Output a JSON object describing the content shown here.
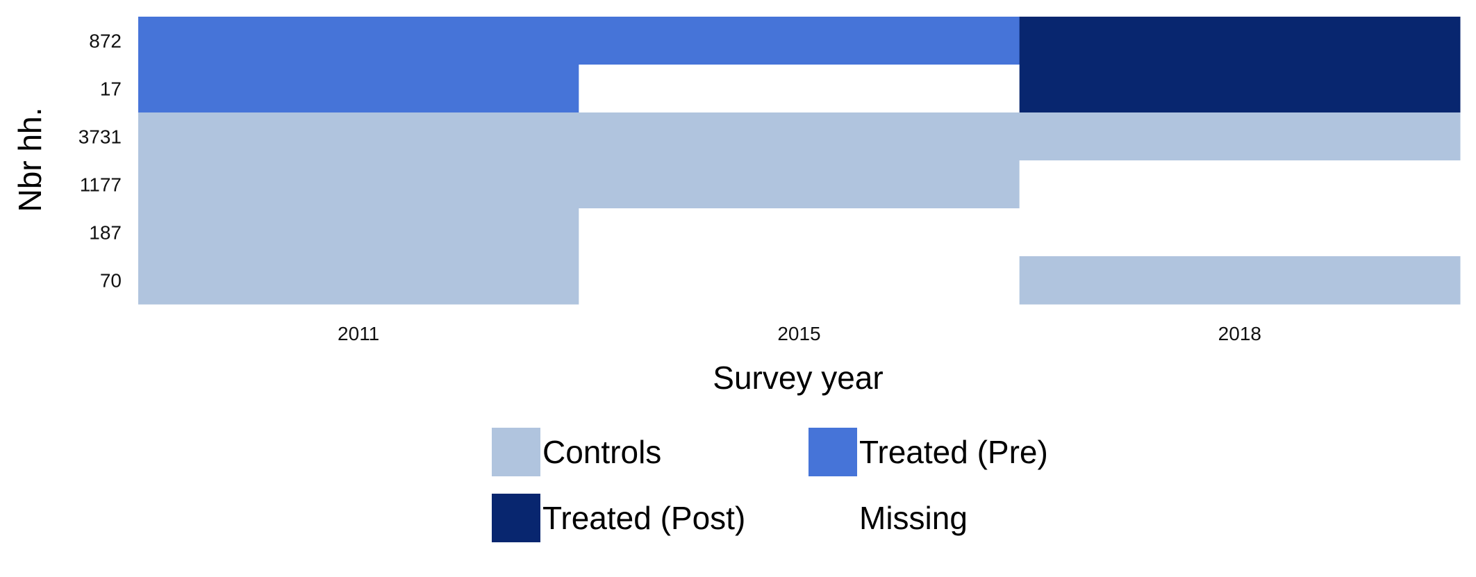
{
  "chart_data": {
    "type": "heatmap",
    "title": "",
    "xlabel": "Survey year",
    "ylabel": "Nbr hh.",
    "x": [
      "2011",
      "2015",
      "2018"
    ],
    "y": [
      "872",
      "17",
      "3731",
      "1177",
      "187",
      "70"
    ],
    "categories": [
      {
        "key": "controls",
        "label": "Controls",
        "color": "#b0c4de"
      },
      {
        "key": "pre",
        "label": "Treated (Pre)",
        "color": "#4674d8"
      },
      {
        "key": "post",
        "label": "Treated (Post)",
        "color": "#08266f"
      },
      {
        "key": "missing",
        "label": "Missing",
        "color": "#ffffff"
      }
    ],
    "cells": [
      [
        "pre",
        "pre",
        "post"
      ],
      [
        "pre",
        "missing",
        "post"
      ],
      [
        "controls",
        "controls",
        "controls"
      ],
      [
        "controls",
        "controls",
        "missing"
      ],
      [
        "controls",
        "missing",
        "missing"
      ],
      [
        "controls",
        "missing",
        "controls"
      ]
    ],
    "legend_position": "bottom"
  }
}
